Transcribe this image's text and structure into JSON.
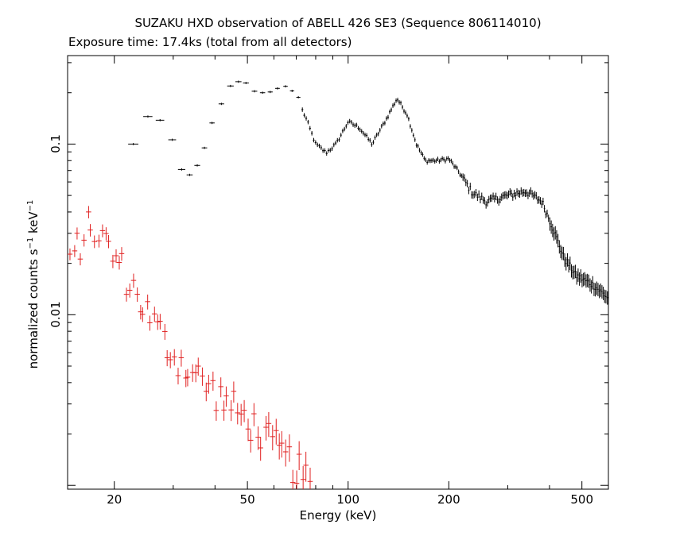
{
  "chart_data": {
    "type": "scatter",
    "title": "SUZAKU HXD observation of ABELL 426 SE3 (Sequence 806114010)",
    "subtitle": "Exposure time: 17.4ks (total from all detectors)",
    "xlabel": "Energy (keV)",
    "ylabel": "normalized counts s",
    "ylabel_sup1": "−1",
    "ylabel_mid": " keV",
    "ylabel_sup2": "−1",
    "xscale": "log",
    "yscale": "log",
    "xlim": [
      14.5,
      600
    ],
    "ylim": [
      0.00095,
      0.33
    ],
    "x_tick_labels": [
      {
        "value": 20,
        "label": "20"
      },
      {
        "value": 50,
        "label": "50"
      },
      {
        "value": 100,
        "label": "100"
      },
      {
        "value": 200,
        "label": "200"
      },
      {
        "value": 500,
        "label": "500"
      }
    ],
    "y_tick_labels": [
      {
        "value": 0.1,
        "label": "0.1"
      },
      {
        "value": 0.01,
        "label": "0.01"
      }
    ],
    "series": [
      {
        "color": "#000000",
        "model": "smooth",
        "profile": [
          [
            22,
            0.1
          ],
          [
            25,
            0.145
          ],
          [
            28,
            0.105
          ],
          [
            31,
            0.07
          ],
          [
            34,
            0.075
          ],
          [
            37,
            0.097
          ],
          [
            40,
            0.135
          ],
          [
            43,
            0.18
          ],
          [
            47,
            0.235
          ],
          [
            52,
            0.22
          ],
          [
            58,
            0.21
          ],
          [
            65,
            0.22
          ],
          [
            70,
            0.19
          ],
          [
            75,
            0.14
          ],
          [
            80,
            0.1
          ],
          [
            86,
            0.089
          ],
          [
            92,
            0.1
          ],
          [
            100,
            0.135
          ],
          [
            108,
            0.125
          ],
          [
            118,
            0.1
          ],
          [
            130,
            0.14
          ],
          [
            140,
            0.185
          ],
          [
            150,
            0.15
          ],
          [
            160,
            0.1
          ],
          [
            170,
            0.08
          ],
          [
            185,
            0.08
          ],
          [
            200,
            0.082
          ],
          [
            215,
            0.068
          ],
          [
            235,
            0.052
          ],
          [
            260,
            0.046
          ],
          [
            300,
            0.05
          ],
          [
            340,
            0.053
          ],
          [
            380,
            0.046
          ],
          [
            410,
            0.032
          ],
          [
            440,
            0.022
          ],
          [
            480,
            0.017
          ],
          [
            540,
            0.015
          ],
          [
            600,
            0.0125
          ]
        ],
        "points": [
          {
            "x": 22.8,
            "y": 0.1,
            "xerr": [
              22.0,
              23.6
            ]
          },
          {
            "x": 25.2,
            "y": 0.145,
            "xerr": [
              24.4,
              26.0
            ]
          },
          {
            "x": 27.4,
            "y": 0.138,
            "xerr": [
              26.6,
              28.2
            ]
          },
          {
            "x": 29.8,
            "y": 0.106,
            "xerr": [
              29.0,
              30.6
            ]
          },
          {
            "x": 31.8,
            "y": 0.071,
            "xerr": [
              31.0,
              32.6
            ]
          },
          {
            "x": 33.6,
            "y": 0.066,
            "xerr": [
              32.9,
              34.3
            ]
          },
          {
            "x": 35.4,
            "y": 0.075,
            "xerr": [
              34.7,
              36.1
            ]
          },
          {
            "x": 37.2,
            "y": 0.095,
            "xerr": [
              36.5,
              37.9
            ]
          },
          {
            "x": 39.2,
            "y": 0.133,
            "xerr": [
              38.5,
              39.9
            ]
          },
          {
            "x": 41.8,
            "y": 0.172,
            "xerr": [
              41.0,
              42.6
            ]
          },
          {
            "x": 44.5,
            "y": 0.219,
            "xerr": [
              43.5,
              45.5
            ]
          },
          {
            "x": 47.0,
            "y": 0.232,
            "xerr": [
              46.0,
              48.0
            ]
          },
          {
            "x": 49.5,
            "y": 0.228,
            "xerr": [
              48.5,
              50.5
            ]
          },
          {
            "x": 52.5,
            "y": 0.204,
            "xerr": [
              51.5,
              53.5
            ]
          },
          {
            "x": 55.5,
            "y": 0.2,
            "xerr": [
              54.5,
              56.5
            ]
          },
          {
            "x": 58.5,
            "y": 0.202,
            "xerr": [
              57.5,
              59.5
            ]
          },
          {
            "x": 61.5,
            "y": 0.212,
            "xerr": [
              60.5,
              62.5
            ]
          },
          {
            "x": 65.0,
            "y": 0.218,
            "xerr": [
              64.0,
              66.0
            ]
          },
          {
            "x": 68.0,
            "y": 0.205,
            "xerr": [
              67.0,
              69.0
            ]
          },
          {
            "x": 71.0,
            "y": 0.188,
            "xerr": [
              70.0,
              72.0
            ]
          }
        ]
      },
      {
        "color": "#e02020",
        "model": "powerlaw",
        "profile": [
          [
            14.5,
            0.0165
          ],
          [
            15.5,
            0.025
          ],
          [
            17.0,
            0.033
          ],
          [
            18.0,
            0.03
          ],
          [
            20,
            0.022
          ],
          [
            25,
            0.0105
          ],
          [
            30,
            0.0058
          ],
          [
            40,
            0.0035
          ],
          [
            50,
            0.0024
          ],
          [
            60,
            0.0017
          ],
          [
            70,
            0.00125
          ],
          [
            80,
            0.0009
          ]
        ],
        "scatter": 0.18,
        "xrange": [
          14.6,
          78
        ],
        "count": 70
      }
    ]
  }
}
